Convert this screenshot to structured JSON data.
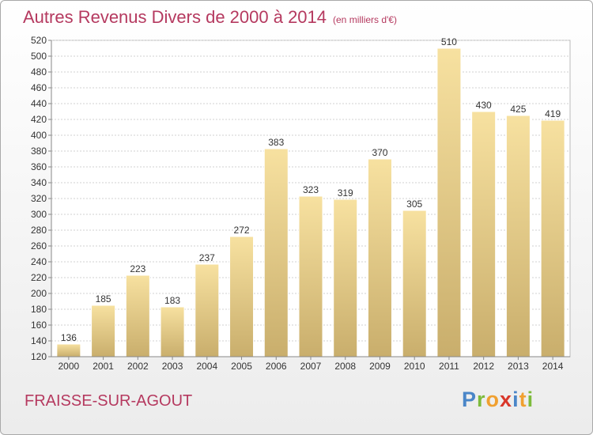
{
  "header": {
    "title": "Autres Revenus Divers de 2000 à 2014",
    "subtitle": "(en milliers d'€)"
  },
  "footer": {
    "city": "FRAISSE-SUR-AGOUT",
    "logo": [
      "P",
      "r",
      "o",
      "x",
      "i",
      "t",
      "i"
    ],
    "logo_colors": [
      "#4a86c8",
      "#7dbb3c",
      "#f0a030",
      "#d9372a",
      "#4a86c8",
      "#f0a030",
      "#7dbb3c"
    ]
  },
  "colors": {
    "accent": "#b5395f",
    "bar_light": "#f7e1a0",
    "bar_dark": "#c9ae6c",
    "grid": "#d0d0d0"
  },
  "chart_data": {
    "type": "bar",
    "title": "Autres Revenus Divers de 2000 à 2014",
    "subtitle": "(en milliers d'€)",
    "categories": [
      "2000",
      "2001",
      "2002",
      "2003",
      "2004",
      "2005",
      "2006",
      "2007",
      "2008",
      "2009",
      "2010",
      "2011",
      "2012",
      "2013",
      "2014"
    ],
    "values": [
      136,
      185,
      223,
      183,
      237,
      272,
      383,
      323,
      319,
      370,
      305,
      510,
      430,
      425,
      419
    ],
    "ylim": [
      120,
      520
    ],
    "yticks": [
      120,
      140,
      160,
      180,
      200,
      220,
      240,
      260,
      280,
      300,
      320,
      340,
      360,
      380,
      400,
      420,
      440,
      460,
      480,
      500,
      520
    ],
    "grid": true,
    "data_labels": true
  }
}
